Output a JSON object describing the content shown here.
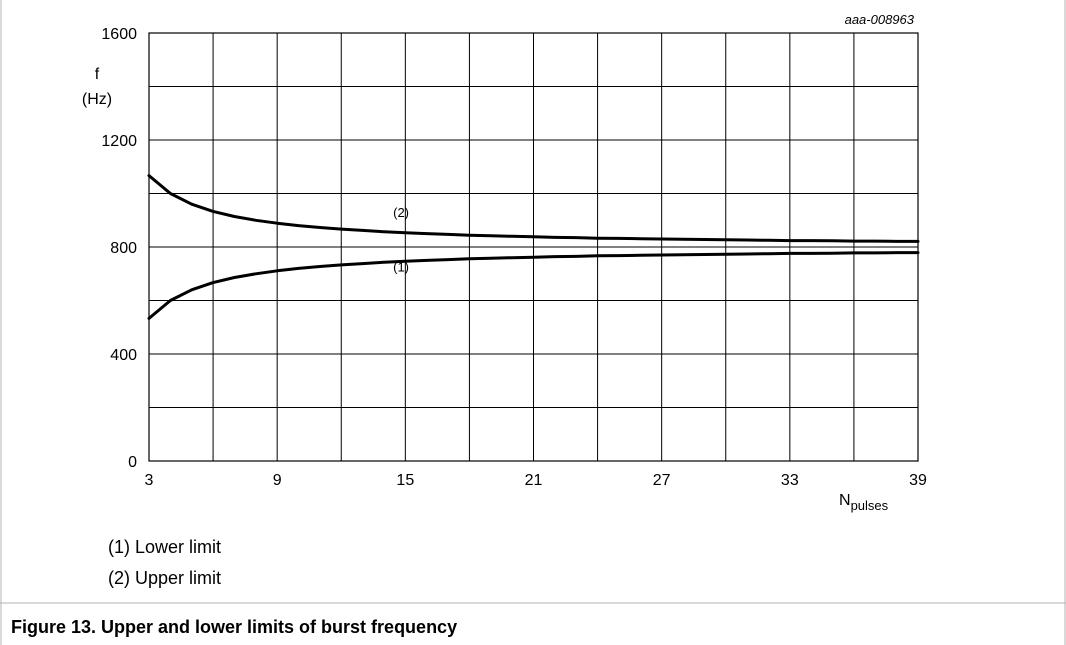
{
  "chart_data": {
    "type": "line",
    "code": "aaa-008963",
    "ylabel_symbol": "f",
    "ylabel_unit": "(Hz)",
    "xlabel_main": "N",
    "xlabel_sub": "pulses",
    "xlim": [
      3,
      39
    ],
    "ylim": [
      0,
      1600
    ],
    "xticks": [
      3,
      9,
      15,
      21,
      27,
      33,
      39
    ],
    "yticks": [
      0,
      400,
      800,
      1200,
      1600
    ],
    "grid": true,
    "x": [
      3,
      4,
      5,
      6,
      7,
      8,
      9,
      10,
      11,
      12,
      13,
      14,
      15,
      16,
      17,
      18,
      19,
      20,
      21,
      22,
      23,
      24,
      25,
      26,
      27,
      28,
      29,
      30,
      31,
      32,
      33,
      34,
      35,
      36,
      37,
      38,
      39
    ],
    "series": [
      {
        "name": "(1)",
        "values": [
          533,
          600,
          640,
          667,
          686,
          700,
          711,
          720,
          727,
          733,
          738,
          743,
          747,
          750,
          753,
          756,
          758,
          760,
          762,
          764,
          765,
          767,
          768,
          769,
          770,
          771,
          772,
          773,
          774,
          775,
          776,
          776,
          777,
          778,
          778,
          779,
          779
        ]
      },
      {
        "name": "(2)",
        "values": [
          1067,
          1000,
          960,
          933,
          914,
          900,
          889,
          880,
          873,
          867,
          862,
          857,
          853,
          850,
          847,
          844,
          842,
          840,
          838,
          836,
          835,
          833,
          832,
          831,
          830,
          829,
          828,
          827,
          826,
          825,
          824,
          824,
          823,
          822,
          822,
          821,
          821
        ]
      }
    ]
  },
  "legend": [
    "(1) Lower limit",
    "(2) Upper limit"
  ],
  "caption": "Figure 13.  Upper and lower limits of burst frequency",
  "colors": {
    "line": "#000000",
    "grid": "#000000",
    "frame": "#b3b3b3"
  }
}
